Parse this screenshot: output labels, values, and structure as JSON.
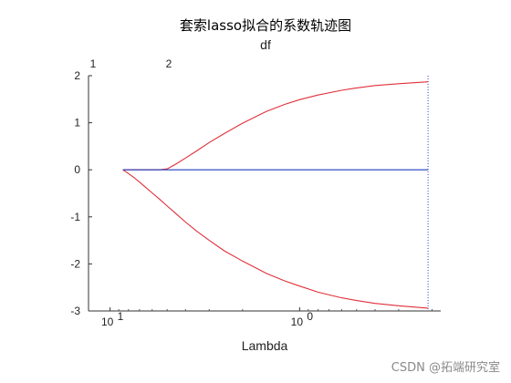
{
  "chart_data": {
    "type": "line",
    "title": "套索lasso拟合的系数轨迹图",
    "subtitle": "df",
    "xlabel": "Lambda",
    "ylabel": "",
    "x_scale": "log",
    "x_reversed": true,
    "xlim": [
      13,
      0.18
    ],
    "ylim": [
      -3,
      2
    ],
    "x_ticks": [
      {
        "value": 10,
        "label": "10",
        "exp": "1"
      },
      {
        "value": 1,
        "label": "10",
        "exp": "0"
      }
    ],
    "y_ticks": [
      2,
      1,
      0,
      -1,
      -2,
      -3
    ],
    "df_ticks": [
      {
        "lambda": 12.3,
        "label": "1"
      },
      {
        "lambda": 4.9,
        "label": "2"
      }
    ],
    "vline": {
      "lambda": 0.21
    },
    "grid": false,
    "series": [
      {
        "color": "#e0303a",
        "points": [
          [
            8.56,
            0
          ],
          [
            5.5,
            0
          ],
          [
            5.0,
            0.02
          ],
          [
            4.5,
            0.12
          ],
          [
            4.0,
            0.25
          ],
          [
            3.5,
            0.4
          ],
          [
            3.0,
            0.58
          ],
          [
            2.5,
            0.77
          ],
          [
            2.0,
            0.99
          ],
          [
            1.5,
            1.24
          ],
          [
            1.2,
            1.39
          ],
          [
            1.0,
            1.49
          ],
          [
            0.8,
            1.59
          ],
          [
            0.6,
            1.69
          ],
          [
            0.5,
            1.74
          ],
          [
            0.4,
            1.79
          ],
          [
            0.3,
            1.83
          ],
          [
            0.21,
            1.87
          ]
        ]
      },
      {
        "color": "#e0303a",
        "points": [
          [
            8.56,
            0
          ],
          [
            8.0,
            -0.08
          ],
          [
            7.5,
            -0.16
          ],
          [
            7.0,
            -0.26
          ],
          [
            6.5,
            -0.37
          ],
          [
            6.0,
            -0.49
          ],
          [
            5.5,
            -0.62
          ],
          [
            5.0,
            -0.77
          ],
          [
            4.5,
            -0.93
          ],
          [
            4.0,
            -1.11
          ],
          [
            3.5,
            -1.3
          ],
          [
            3.0,
            -1.5
          ],
          [
            2.5,
            -1.72
          ],
          [
            2.0,
            -1.94
          ],
          [
            1.5,
            -2.2
          ],
          [
            1.2,
            -2.36
          ],
          [
            1.0,
            -2.47
          ],
          [
            0.8,
            -2.6
          ],
          [
            0.6,
            -2.72
          ],
          [
            0.5,
            -2.78
          ],
          [
            0.4,
            -2.84
          ],
          [
            0.3,
            -2.89
          ],
          [
            0.21,
            -2.94
          ]
        ]
      },
      {
        "color": "#1f3fbf",
        "points": [
          [
            8.56,
            0
          ],
          [
            0.21,
            0
          ]
        ]
      }
    ]
  },
  "watermark": "CSDN @拓端研究室"
}
